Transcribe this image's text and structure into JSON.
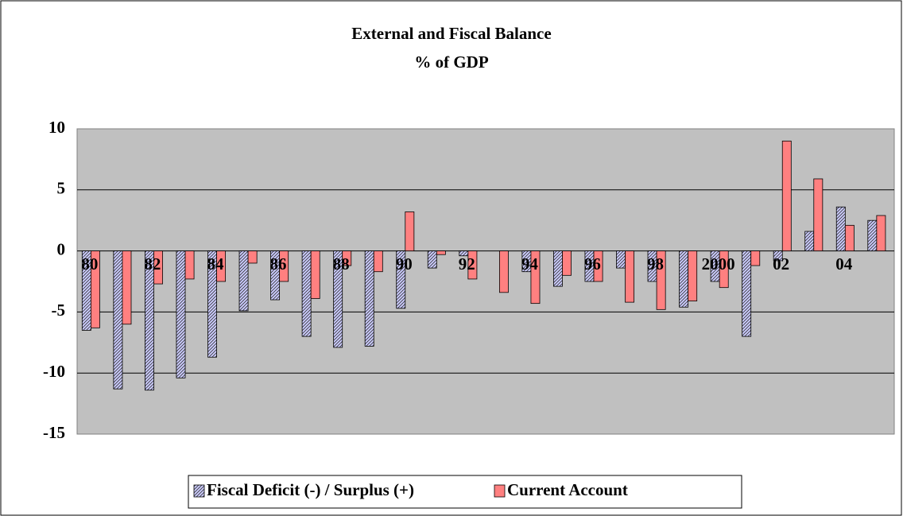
{
  "chart_data": {
    "type": "bar",
    "title": "External and Fiscal Balance",
    "subtitle": "% of GDP",
    "categories": [
      "80",
      null,
      "82",
      null,
      "84",
      null,
      "86",
      null,
      "88",
      null,
      "90",
      null,
      "92",
      null,
      "94",
      null,
      "96",
      null,
      "98",
      null,
      "2000",
      null,
      "02",
      null,
      "04",
      null
    ],
    "series": [
      {
        "name": "Fiscal Deficit (-) / Surplus (+)",
        "color": "#ccccff",
        "values": [
          -6.5,
          -11.3,
          -11.4,
          -10.4,
          -8.7,
          -4.9,
          -4.0,
          -7.0,
          -7.9,
          -7.8,
          -4.7,
          -1.4,
          -0.4,
          0,
          -1.7,
          -2.9,
          -2.5,
          -1.4,
          -2.5,
          -4.6,
          -2.5,
          -7.0,
          -0.8,
          1.6,
          3.6,
          2.5
        ]
      },
      {
        "name": "Current Account",
        "color": "#ff8080",
        "values": [
          -6.3,
          -6.0,
          -2.7,
          -2.3,
          -2.5,
          -1.0,
          -2.5,
          -3.9,
          -1.2,
          -1.7,
          3.2,
          -0.3,
          -2.3,
          -3.4,
          -4.3,
          -2.0,
          -2.5,
          -4.2,
          -4.8,
          -4.1,
          -3.0,
          -1.2,
          9.0,
          5.9,
          2.1,
          2.9
        ]
      }
    ],
    "ylim": [
      -15,
      10
    ],
    "yticks": [
      10,
      5,
      0,
      -5,
      -10,
      -15
    ],
    "grid": true,
    "legend": "bottom"
  }
}
